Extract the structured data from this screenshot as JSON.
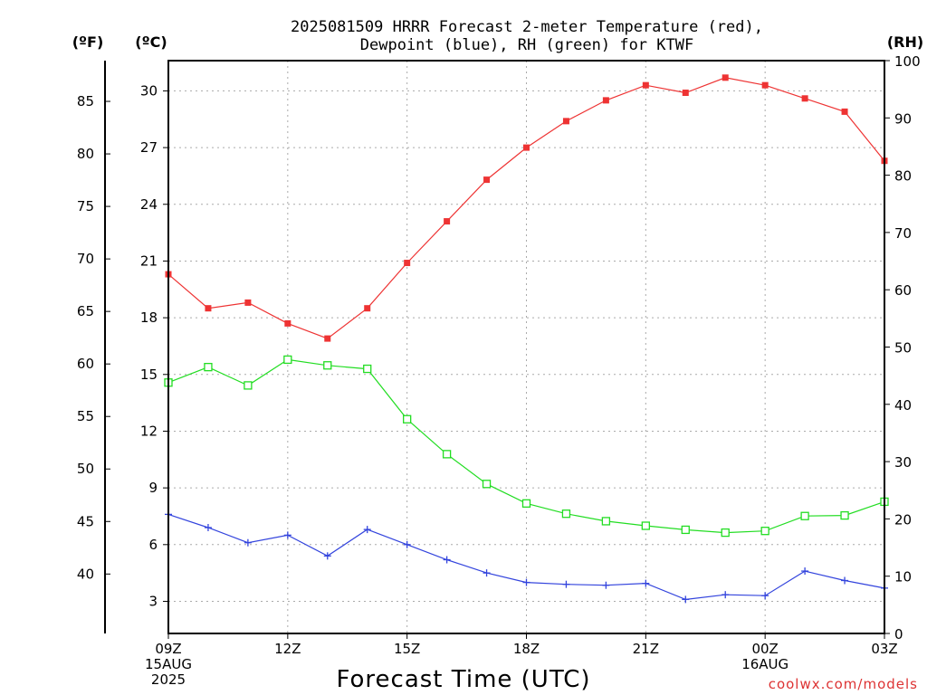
{
  "chart_data": {
    "type": "line",
    "title_line1": "2025081509 HRRR Forecast 2-meter Temperature (red),",
    "title_line2": "Dewpoint (blue), RH (green) for KTWF",
    "xlabel": "Forecast Time (UTC)",
    "credit": "coolwx.com/models",
    "units": {
      "fahrenheit": "(ºF)",
      "celsius": "(ºC)",
      "rh": "(RH)"
    },
    "x_ticks": [
      {
        "hour": 0,
        "lines": [
          "09Z",
          "15AUG",
          "2025"
        ]
      },
      {
        "hour": 3,
        "lines": [
          "12Z"
        ]
      },
      {
        "hour": 6,
        "lines": [
          "15Z"
        ]
      },
      {
        "hour": 9,
        "lines": [
          "18Z"
        ]
      },
      {
        "hour": 12,
        "lines": [
          "21Z"
        ]
      },
      {
        "hour": 15,
        "lines": [
          "00Z",
          "16AUG"
        ]
      },
      {
        "hour": 18,
        "lines": [
          "03Z"
        ]
      }
    ],
    "x_hours": [
      0,
      1,
      2,
      3,
      4,
      5,
      6,
      7,
      8,
      9,
      10,
      11,
      12,
      13,
      14,
      15,
      16,
      17,
      18
    ],
    "x_range_hours": [
      0,
      18
    ],
    "celsius_axis": {
      "range": [
        1.3,
        31.6
      ],
      "ticks": [
        3,
        6,
        9,
        12,
        15,
        18,
        21,
        24,
        27,
        30
      ]
    },
    "fahrenheit_axis": {
      "ticks": [
        40,
        45,
        50,
        55,
        60,
        65,
        70,
        75,
        80,
        85
      ]
    },
    "rh_axis": {
      "range": [
        0,
        100
      ],
      "ticks": [
        0,
        10,
        20,
        30,
        40,
        50,
        60,
        70,
        80,
        90,
        100
      ]
    },
    "grid": true,
    "series": [
      {
        "key": "temperature",
        "axis": "celsius",
        "color": "#ee3333",
        "marker": "filled-square",
        "values": [
          20.3,
          18.5,
          18.8,
          17.7,
          16.9,
          18.5,
          20.9,
          23.1,
          25.3,
          27.0,
          28.4,
          29.5,
          30.3,
          29.9,
          30.7,
          30.3,
          29.6,
          28.9,
          26.3
        ]
      },
      {
        "key": "dewpoint",
        "axis": "celsius",
        "color": "#3344dd",
        "marker": "plus",
        "values": [
          7.6,
          6.9,
          6.1,
          6.5,
          5.4,
          6.8,
          6.0,
          5.2,
          4.5,
          4.0,
          3.9,
          3.85,
          3.95,
          3.1,
          3.35,
          3.3,
          4.6,
          4.1,
          3.7
        ]
      },
      {
        "key": "rh",
        "axis": "rh",
        "color": "#22dd22",
        "marker": "open-square",
        "values": [
          43.8,
          46.5,
          43.3,
          47.8,
          46.8,
          46.2,
          37.4,
          31.3,
          26.1,
          22.7,
          20.9,
          19.6,
          18.8,
          18.1,
          17.6,
          17.9,
          20.5,
          20.6,
          23.0
        ]
      }
    ]
  }
}
